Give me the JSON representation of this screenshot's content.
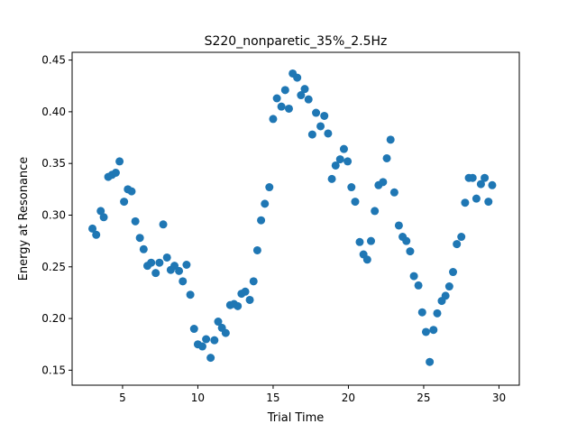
{
  "chart_data": {
    "type": "scatter",
    "title": "S220_nonparetic_35%_2.5Hz",
    "xlabel": "Trial Time",
    "ylabel": "Energy at Resonance",
    "xlim": [
      1.65,
      31.35
    ],
    "ylim": [
      0.1355,
      0.4575
    ],
    "xticks": [
      5,
      10,
      15,
      20,
      25,
      30
    ],
    "yticks": [
      0.15,
      0.2,
      0.25,
      0.3,
      0.35,
      0.4,
      0.45
    ],
    "xtick_labels": [
      "5",
      "10",
      "15",
      "20",
      "25",
      "30"
    ],
    "ytick_labels": [
      "0.15",
      "0.20",
      "0.25",
      "0.30",
      "0.35",
      "0.40",
      "0.45"
    ],
    "marker_color": "#1f77b4",
    "grid": false,
    "legend": "none",
    "series": [
      {
        "x": [
          3.0,
          3.25,
          3.55,
          3.75,
          4.05,
          4.3,
          4.55,
          4.8,
          5.1,
          5.35,
          5.6,
          5.85,
          6.15,
          6.4,
          6.65,
          6.9,
          7.2,
          7.45,
          7.7,
          7.95,
          8.2,
          8.45,
          8.75,
          9.0,
          9.25,
          9.5,
          9.75,
          10.0,
          10.3,
          10.55,
          10.85,
          11.1,
          11.35,
          11.6,
          11.85,
          12.15,
          12.4,
          12.65,
          12.9,
          13.15,
          13.45,
          13.7,
          13.95,
          14.2,
          14.45,
          14.75,
          15.0,
          15.25,
          15.55,
          15.8,
          16.05,
          16.3,
          16.6,
          16.85,
          17.1,
          17.35,
          17.6,
          17.85,
          18.15,
          18.4,
          18.65,
          18.9,
          19.15,
          19.45,
          19.7,
          19.95,
          20.2,
          20.45,
          20.75,
          21.0,
          21.25,
          21.5,
          21.75,
          22.0,
          22.3,
          22.55,
          22.8,
          23.05,
          23.35,
          23.6,
          23.85,
          24.1,
          24.35,
          24.65,
          24.9,
          25.15,
          25.4,
          25.65,
          25.9,
          26.2,
          26.45,
          26.7,
          26.95,
          27.2,
          27.5,
          27.75,
          28.0,
          28.25,
          28.5,
          28.8,
          29.05,
          29.3,
          29.55
        ],
        "y": [
          0.287,
          0.281,
          0.304,
          0.298,
          0.337,
          0.339,
          0.341,
          0.352,
          0.313,
          0.325,
          0.323,
          0.294,
          0.278,
          0.267,
          0.251,
          0.254,
          0.244,
          0.254,
          0.291,
          0.259,
          0.247,
          0.251,
          0.246,
          0.236,
          0.252,
          0.223,
          0.19,
          0.175,
          0.173,
          0.18,
          0.162,
          0.179,
          0.197,
          0.191,
          0.186,
          0.213,
          0.214,
          0.212,
          0.224,
          0.226,
          0.218,
          0.236,
          0.266,
          0.295,
          0.311,
          0.327,
          0.393,
          0.413,
          0.405,
          0.421,
          0.403,
          0.437,
          0.433,
          0.416,
          0.422,
          0.412,
          0.378,
          0.399,
          0.386,
          0.396,
          0.379,
          0.335,
          0.348,
          0.354,
          0.364,
          0.352,
          0.327,
          0.313,
          0.274,
          0.262,
          0.257,
          0.275,
          0.304,
          0.329,
          0.332,
          0.355,
          0.373,
          0.322,
          0.29,
          0.279,
          0.275,
          0.265,
          0.241,
          0.232,
          0.206,
          0.187,
          0.158,
          0.189,
          0.205,
          0.217,
          0.222,
          0.231,
          0.245,
          0.272,
          0.279,
          0.312,
          0.336,
          0.336,
          0.316,
          0.33,
          0.336,
          0.313,
          0.329
        ]
      }
    ]
  }
}
